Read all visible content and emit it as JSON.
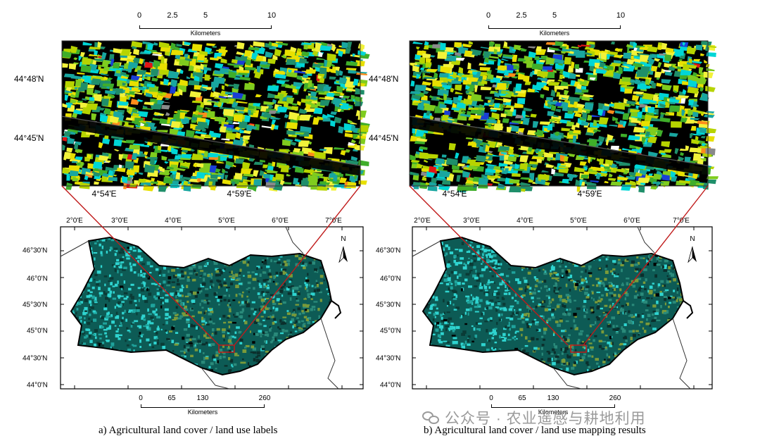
{
  "panels": [
    {
      "zoom": {
        "scale": {
          "ticks": [
            "0",
            "2.5",
            "5",
            "10"
          ],
          "unit": "Kilometers"
        },
        "lat_labels": [
          "44°48'N",
          "44°45'N"
        ],
        "lon_labels": [
          "4°54'E",
          "4°59'E"
        ]
      },
      "overview": {
        "lon_labels": [
          "2°0'E",
          "3°0'E",
          "4°0'E",
          "5°0'E",
          "6°0'E",
          "7°0'E"
        ],
        "lat_labels": [
          "46°30'N",
          "46°0'N",
          "45°30'N",
          "45°0'N",
          "44°30'N",
          "44°0'N"
        ],
        "north": "N",
        "scale": {
          "ticks": [
            "0",
            "65",
            "130",
            "260"
          ],
          "unit": "Kilometers"
        }
      },
      "caption": "a) Agricultural land cover / land use labels"
    },
    {
      "zoom": {
        "scale": {
          "ticks": [
            "0",
            "2.5",
            "5",
            "10"
          ],
          "unit": "Kilometers"
        },
        "lat_labels": [
          "44°48'N",
          "44°45'N"
        ],
        "lon_labels": [
          "4°54'E",
          "4°59'E"
        ]
      },
      "overview": {
        "lon_labels": [
          "2°0'E",
          "3°0'E",
          "4°0'E",
          "5°0'E",
          "6°0'E",
          "7°0'E"
        ],
        "lat_labels": [
          "46°30'N",
          "46°0'N",
          "45°30'N",
          "45°0'N",
          "44°30'N",
          "44°0'N"
        ],
        "north": "N",
        "scale": {
          "ticks": [
            "0",
            "65",
            "130",
            "260"
          ],
          "unit": "Kilometers"
        }
      },
      "caption": "b) Agricultural land cover / land use mapping results"
    }
  ],
  "watermark": "公众号 · 农业遥感与耕地利用",
  "colors": {
    "field_palette": [
      "#e8e000",
      "#b7d400",
      "#7fcc1e",
      "#3fae2a",
      "#1f8f6a",
      "#19a6a0",
      "#00d6d6",
      "#f2f23a"
    ],
    "accent_fields": [
      "#ff8c1a",
      "#e01515",
      "#1a3fd6",
      "#ffffff",
      "#8a8a8a"
    ],
    "overview_base": "#0d5b55",
    "overview_cyan": "#2fd4d0",
    "connector": "#c01a1a"
  }
}
